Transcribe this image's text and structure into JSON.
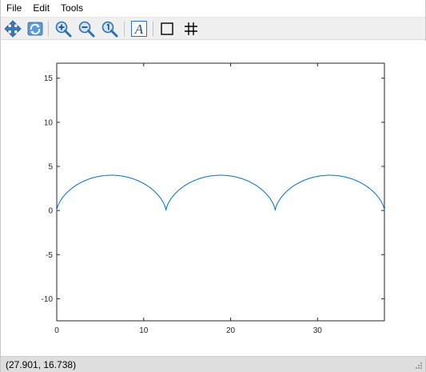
{
  "menu": {
    "file": "File",
    "edit": "Edit",
    "tools": "Tools"
  },
  "toolbar": {
    "icons": [
      "pan-icon",
      "rotate-icon",
      "zoom-in-icon",
      "zoom-out-icon",
      "zoom-reset-icon",
      "text-annotation-icon",
      "axes-box-icon",
      "grid-icon"
    ],
    "text_button_glyph": "A"
  },
  "status": {
    "coords": "(27.901, 16.738)"
  },
  "colors": {
    "line": "#0072bd",
    "toolbar_bg": "#f0f0f0",
    "status_bg": "#dedede"
  },
  "chart_data": {
    "type": "line",
    "title": "",
    "xlabel": "",
    "ylabel": "",
    "xlim": [
      0,
      37.7
    ],
    "ylim": [
      -12.5,
      16.7
    ],
    "xticks": [
      0,
      10,
      20,
      30
    ],
    "yticks": [
      -10,
      -5,
      0,
      5,
      10,
      15
    ],
    "grid": false,
    "series": [
      {
        "curve": "cycloid",
        "radius": 2,
        "arches": 3,
        "x": [
          0,
          0.66,
          2.46,
          4.92,
          7.65,
          10.09,
          11.89,
          12.57,
          13.23,
          15.03,
          17.49,
          20.21,
          22.66,
          24.47,
          25.13,
          25.8,
          27.59,
          30.06,
          32.78,
          35.22,
          37.03,
          37.7
        ],
        "y": [
          0,
          1.09,
          2.65,
          3.87,
          3.87,
          2.65,
          1.09,
          0,
          1.09,
          2.65,
          3.87,
          3.87,
          2.65,
          1.09,
          0,
          1.09,
          2.65,
          3.87,
          3.87,
          2.65,
          1.09,
          0
        ]
      }
    ]
  }
}
